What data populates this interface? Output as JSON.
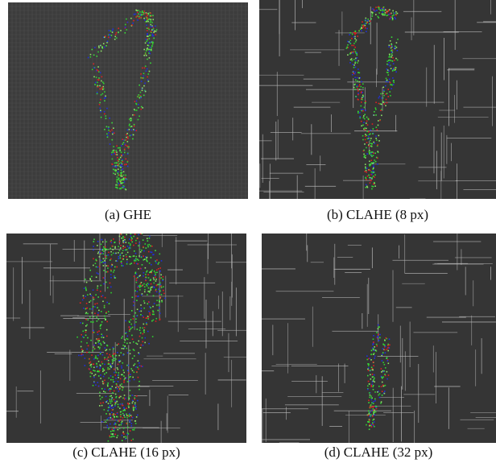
{
  "figure": {
    "panels": [
      {
        "caption": "(a) GHE"
      },
      {
        "caption": "(b) CLAHE (8 px)"
      },
      {
        "caption": "(c) CLAHE (16 px)"
      },
      {
        "caption": "(d) CLAHE (32 px)"
      }
    ]
  }
}
